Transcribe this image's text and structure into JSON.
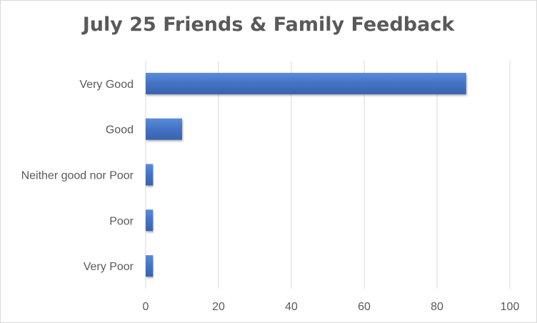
{
  "chart_data": {
    "type": "bar",
    "orientation": "horizontal",
    "title": "July 25 Friends & Family Feedback",
    "categories": [
      "Very Good",
      "Good",
      "Neither good nor Poor",
      "Poor",
      "Very Poor"
    ],
    "values": [
      88,
      10,
      2,
      2,
      2
    ],
    "xlim": [
      0,
      100
    ],
    "x_ticks": [
      0,
      20,
      40,
      60,
      80,
      100
    ],
    "xlabel": "",
    "ylabel": "",
    "grid": "vertical",
    "legend": "none",
    "bar_color": "#4472c4",
    "bar_color_dark": "#3a62ad",
    "grid_color": "#d9d9d9",
    "text_color": "#595959"
  }
}
